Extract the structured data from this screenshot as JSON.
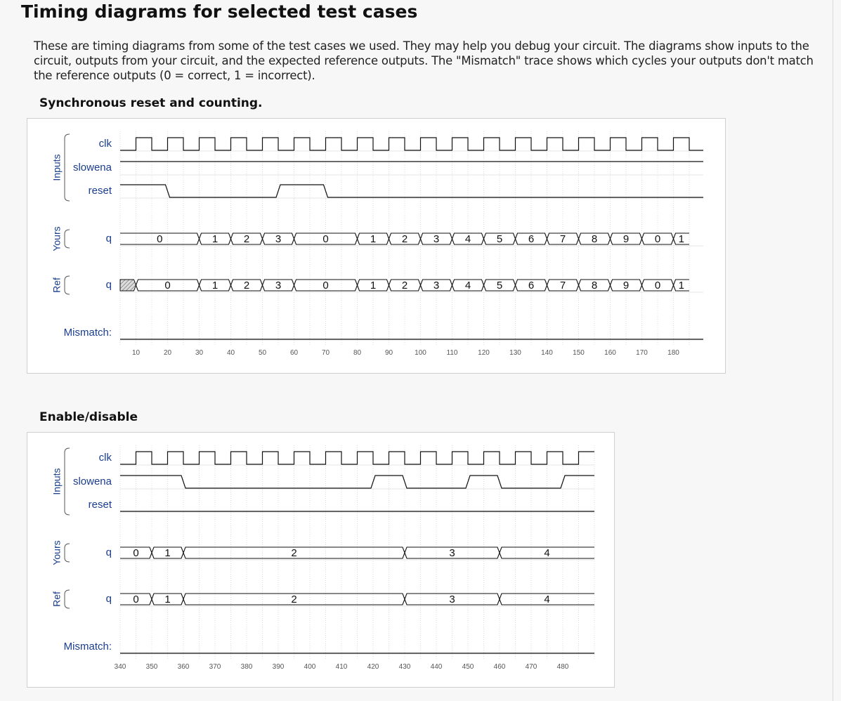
{
  "page": {
    "title": "Timing diagrams for selected test cases",
    "intro": "These are timing diagrams from some of the test cases we used. They may help you debug your circuit. The diagrams show inputs to the circuit, outputs from your circuit, and the expected reference outputs. The \"Mismatch\" trace shows which cycles your outputs don't match the reference outputs (0 = correct, 1 = incorrect)."
  },
  "diagrams": [
    {
      "title": "Synchronous reset and counting.",
      "groups": [
        "Inputs",
        "Yours",
        "Ref"
      ],
      "signals": {
        "clk": "clk",
        "slowena": "slowena",
        "reset": "reset",
        "yours_q": "q",
        "ref_q": "q",
        "mismatch": "Mismatch:"
      },
      "time_axis": {
        "start": 5,
        "end": 185,
        "ticks": [
          10,
          20,
          30,
          40,
          50,
          60,
          70,
          80,
          90,
          100,
          110,
          120,
          130,
          140,
          150,
          160,
          170,
          180
        ]
      },
      "clk": {
        "period": 10,
        "first_rise": 10
      },
      "slowena": {
        "initial": 1,
        "transitions": []
      },
      "reset": {
        "initial": 1,
        "transitions": [
          [
            20,
            0
          ],
          [
            55,
            1
          ],
          [
            70,
            0
          ]
        ]
      },
      "yours_q": [
        [
          5,
          30,
          "0"
        ],
        [
          30,
          40,
          "1"
        ],
        [
          40,
          50,
          "2"
        ],
        [
          50,
          60,
          "3"
        ],
        [
          60,
          80,
          "0"
        ],
        [
          80,
          90,
          "1"
        ],
        [
          90,
          100,
          "2"
        ],
        [
          100,
          110,
          "3"
        ],
        [
          110,
          120,
          "4"
        ],
        [
          120,
          130,
          "5"
        ],
        [
          130,
          140,
          "6"
        ],
        [
          140,
          150,
          "7"
        ],
        [
          150,
          160,
          "8"
        ],
        [
          160,
          170,
          "9"
        ],
        [
          170,
          180,
          "0"
        ],
        [
          180,
          185,
          "1"
        ]
      ],
      "ref_q": [
        [
          5,
          10,
          "x"
        ],
        [
          10,
          30,
          "0"
        ],
        [
          30,
          40,
          "1"
        ],
        [
          40,
          50,
          "2"
        ],
        [
          50,
          60,
          "3"
        ],
        [
          60,
          80,
          "0"
        ],
        [
          80,
          90,
          "1"
        ],
        [
          90,
          100,
          "2"
        ],
        [
          100,
          110,
          "3"
        ],
        [
          110,
          120,
          "4"
        ],
        [
          120,
          130,
          "5"
        ],
        [
          130,
          140,
          "6"
        ],
        [
          140,
          150,
          "7"
        ],
        [
          150,
          160,
          "8"
        ],
        [
          160,
          170,
          "9"
        ],
        [
          170,
          180,
          "0"
        ],
        [
          180,
          185,
          "1"
        ]
      ],
      "mismatch": {
        "initial": 0,
        "transitions": []
      }
    },
    {
      "title": "Enable/disable",
      "groups": [
        "Inputs",
        "Yours",
        "Ref"
      ],
      "signals": {
        "clk": "clk",
        "slowena": "slowena",
        "reset": "reset",
        "yours_q": "q",
        "ref_q": "q",
        "mismatch": "Mismatch:"
      },
      "time_axis": {
        "start": 340,
        "end": 490,
        "ticks": [
          340,
          350,
          360,
          370,
          380,
          390,
          400,
          410,
          420,
          430,
          440,
          450,
          460,
          470,
          480
        ]
      },
      "clk": {
        "period": 10,
        "first_rise": 345
      },
      "slowena": {
        "initial": 1,
        "transitions": [
          [
            360,
            0
          ],
          [
            420,
            1
          ],
          [
            430,
            0
          ],
          [
            450,
            1
          ],
          [
            460,
            0
          ],
          [
            480,
            1
          ]
        ]
      },
      "reset": {
        "initial": 0,
        "transitions": []
      },
      "yours_q": [
        [
          340,
          350,
          "0"
        ],
        [
          350,
          360,
          "1"
        ],
        [
          360,
          430,
          "2"
        ],
        [
          430,
          460,
          "3"
        ],
        [
          460,
          490,
          "4"
        ]
      ],
      "ref_q": [
        [
          340,
          350,
          "0"
        ],
        [
          350,
          360,
          "1"
        ],
        [
          360,
          430,
          "2"
        ],
        [
          430,
          460,
          "3"
        ],
        [
          460,
          490,
          "4"
        ]
      ],
      "mismatch": {
        "initial": 0,
        "transitions": []
      }
    }
  ]
}
